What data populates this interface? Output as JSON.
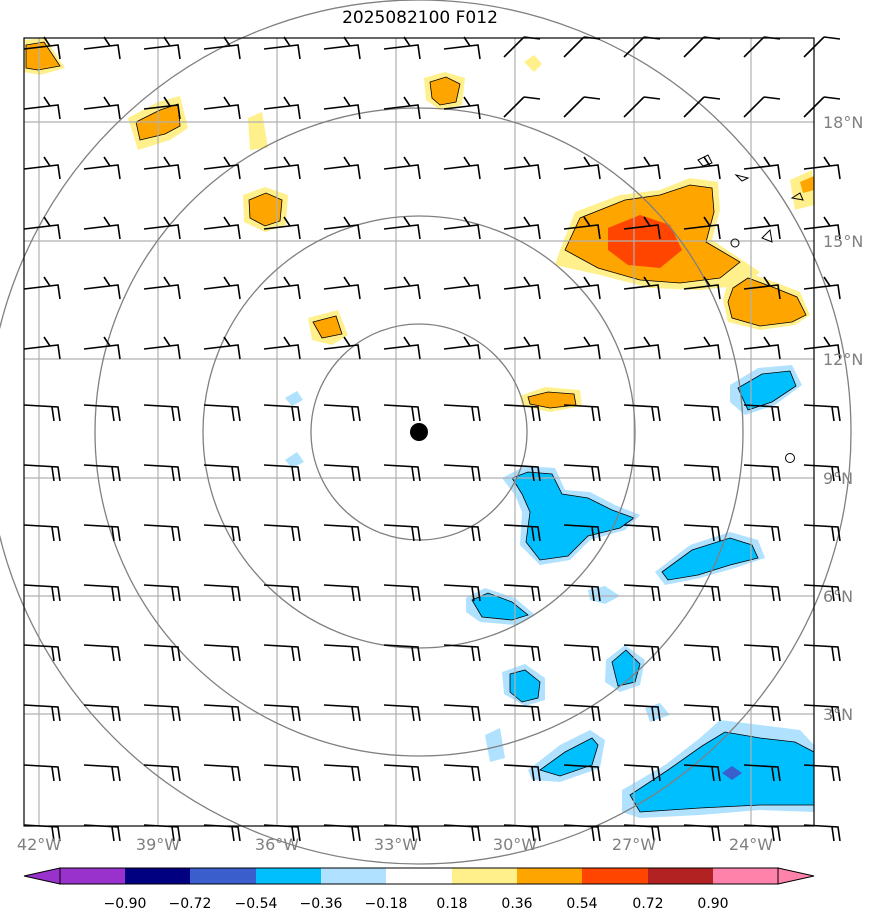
{
  "title": "2025082100 F012",
  "map": {
    "lon_ticks": [
      "42°W",
      "39°W",
      "36°W",
      "33°W",
      "30°W",
      "27°W",
      "24°W"
    ],
    "lat_ticks": [
      "18°N",
      "15°N",
      "12°N",
      "9°N",
      "6°N",
      "3°N"
    ],
    "gridline_color": "#b0b0b0",
    "range_ring_color": "#808080",
    "center_marker": "storm-center-dot"
  },
  "colorbar": {
    "labels": [
      "−0.90",
      "−0.72",
      "−0.54",
      "−0.36",
      "−0.18",
      "0.18",
      "0.36",
      "0.54",
      "0.72",
      "0.90"
    ],
    "colors": [
      "#9932cc",
      "#000080",
      "#3a5fcd",
      "#00bfff",
      "#b0e2ff",
      "#ffffff",
      "#fff08c",
      "#ffa500",
      "#ff4500",
      "#b22222",
      "#ff82ab"
    ]
  }
}
